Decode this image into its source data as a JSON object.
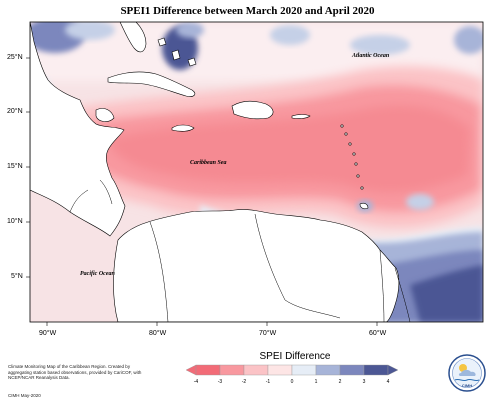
{
  "title": "SPEI1 Difference between March 2020 and April 2020",
  "map": {
    "latitude_labels": [
      "25°N",
      "20°N",
      "15°N",
      "10°N",
      "5°N"
    ],
    "longitude_labels": [
      "90°W",
      "80°W",
      "70°W",
      "60°W"
    ],
    "ocean_labels": {
      "atlantic": "Atlantic Ocean",
      "caribbean": "Caribbean Sea",
      "pacific": "Pacific Ocean"
    }
  },
  "legend": {
    "title": "SPEI Difference",
    "tick_labels": [
      "-4",
      "-3",
      "-2",
      "-1",
      "0",
      "1",
      "2",
      "3",
      "4"
    ],
    "colors": [
      "#f26b77",
      "#f8989f",
      "#fbc3c6",
      "#fde5e5",
      "#e6edf6",
      "#a7b4d8",
      "#7c87bd",
      "#4c5794"
    ]
  },
  "footer": {
    "note": "Climate Monitoring Map of the Caribbean Region. Created by aggregating station based observations, provided by CariCOF, with NCEP/NCAR Reanalysis Data.",
    "credit": "CIMH May-2020",
    "logo_text": "CIMH"
  },
  "colors": {
    "land": "#ffffff",
    "strong_dry": "#f58a92",
    "moderate_dry": "#fbc3c6",
    "wet": "#4c5794"
  }
}
